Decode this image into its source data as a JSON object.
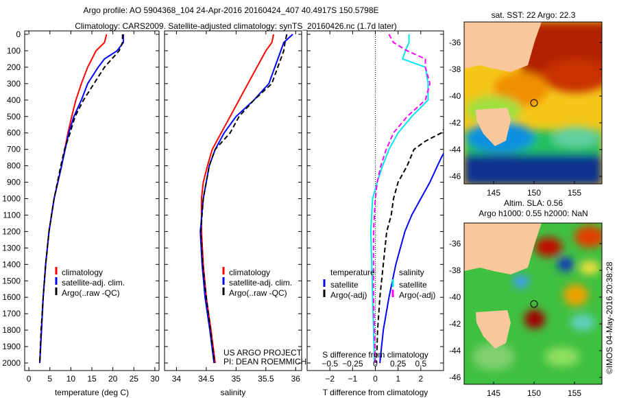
{
  "title_line1": "Argo profile: AO 5904368_104 24-Apr-2016 20160424_407 40.4917S 150.5798E",
  "title_line2": "Climatology: CARS2009. Satellite-adjusted climatology: synTS_20160426.nc (1.7d later)",
  "project_line1": "US ARGO PROJECT",
  "project_line2": "PI: DEAN ROEMMICH",
  "timestamp": "©IMOS 04-May-2016 20:38:28",
  "chart_data": [
    {
      "type": "line",
      "xlabel": "temperature (deg C)",
      "ylabel": "",
      "xlim": [
        -1,
        31
      ],
      "ylim": [
        2050,
        0
      ],
      "xticks": [
        0,
        5,
        10,
        15,
        20,
        25,
        30
      ],
      "yticks": [
        0,
        100,
        200,
        300,
        400,
        500,
        600,
        700,
        800,
        900,
        1000,
        1100,
        1200,
        1300,
        1400,
        1500,
        1600,
        1700,
        1800,
        1900,
        2000
      ],
      "legend": [
        "climatology",
        "satellite-adj. clim.",
        "Argo(..raw -QC)"
      ],
      "series": [
        {
          "name": "climatology",
          "color": "#ff0000",
          "dash": false,
          "depth": [
            0,
            50,
            100,
            200,
            300,
            400,
            500,
            600,
            800,
            1000,
            1200,
            1400,
            1600,
            1800,
            2000
          ],
          "values": [
            18.5,
            18,
            16,
            14,
            12.5,
            11.2,
            10.2,
            9.3,
            7.8,
            6,
            4.8,
            4,
            3.4,
            3,
            2.6
          ]
        },
        {
          "name": "satellite-adj. clim.",
          "color": "#0000ff",
          "dash": false,
          "depth": [
            0,
            50,
            100,
            150,
            200,
            300,
            400,
            500,
            600,
            800,
            1000,
            1200,
            1400,
            1600,
            1800,
            2000
          ],
          "values": [
            22.5,
            22.5,
            21,
            18,
            16.5,
            14,
            12.5,
            10.7,
            9.5,
            7.8,
            6,
            4.8,
            4,
            3.4,
            3,
            2.6
          ]
        },
        {
          "name": "Argo(..raw -QC)",
          "color": "#000000",
          "dash": true,
          "depth": [
            0,
            50,
            100,
            200,
            300,
            400,
            500,
            600,
            700,
            800,
            1000,
            1200,
            1400,
            1600,
            1800,
            2000
          ],
          "values": [
            22.3,
            22.3,
            21.5,
            18,
            15.5,
            13,
            11,
            9.8,
            8.5,
            7.6,
            6,
            4.8,
            4,
            3.4,
            2.9,
            2.6
          ]
        }
      ]
    },
    {
      "type": "line",
      "xlabel": "salinity",
      "xlim": [
        33.8,
        36.1
      ],
      "ylim": [
        2050,
        0
      ],
      "xticks": [
        34,
        34.5,
        35,
        35.5,
        36
      ],
      "legend": [
        "climatology",
        "satellite-adj. clim.",
        "Argo(..raw -QC)"
      ],
      "series": [
        {
          "name": "climatology",
          "color": "#ff0000",
          "dash": false,
          "depth": [
            0,
            50,
            100,
            200,
            300,
            400,
            500,
            600,
            700,
            800,
            900,
            1000,
            1200,
            1400,
            1600,
            1800,
            2000
          ],
          "values": [
            35.63,
            35.6,
            35.5,
            35.35,
            35.2,
            35.05,
            34.9,
            34.75,
            34.6,
            34.52,
            34.45,
            34.42,
            34.42,
            34.45,
            34.5,
            34.58,
            34.65
          ]
        },
        {
          "name": "satellite-adj. clim.",
          "color": "#0000ff",
          "dash": false,
          "depth": [
            0,
            50,
            100,
            200,
            300,
            400,
            500,
            600,
            700,
            800,
            1000,
            1200,
            1400,
            1600,
            1800,
            2000
          ],
          "values": [
            35.95,
            35.8,
            35.75,
            35.65,
            35.55,
            35.3,
            35.0,
            34.8,
            34.65,
            34.55,
            34.45,
            34.4,
            34.43,
            34.48,
            34.56,
            34.63
          ]
        },
        {
          "name": "Argo(..raw -QC)",
          "color": "#000000",
          "dash": true,
          "depth": [
            0,
            50,
            100,
            200,
            300,
            400,
            500,
            600,
            700,
            800,
            1000,
            1200,
            1400,
            1600,
            1800,
            2000
          ],
          "values": [
            35.85,
            35.82,
            35.8,
            35.7,
            35.6,
            35.3,
            35.05,
            34.9,
            34.65,
            34.55,
            34.45,
            34.41,
            34.44,
            34.5,
            34.57,
            34.64
          ]
        }
      ]
    },
    {
      "type": "line",
      "xlabel": "T difference from climatology",
      "xlabel2": "S difference from climatology",
      "xlim": [
        -3,
        3
      ],
      "s_xlim": [
        -0.75,
        0.75
      ],
      "ylim": [
        2050,
        0
      ],
      "xticks": [
        -2,
        -1,
        0,
        1,
        2
      ],
      "s_xticks": [
        -0.5,
        -0.25,
        0,
        0.25,
        0.5
      ],
      "legend_headers": [
        "temperature",
        "salinity"
      ],
      "legend": [
        "satellite",
        "Argo(-adj)",
        "satellite",
        "Argo(-adj)"
      ],
      "series": [
        {
          "name": "T satellite",
          "axis": "T",
          "color": "#0000ff",
          "dash": false,
          "depth": [
            700,
            750,
            900,
            1000,
            1100,
            1200,
            1400,
            1600,
            1800,
            2000
          ],
          "values": [
            3.1,
            2.9,
            2.4,
            2.0,
            1.6,
            1.3,
            0.9,
            0.6,
            0.35,
            0.2
          ]
        },
        {
          "name": "T Argo(-adj)",
          "axis": "T",
          "color": "#000000",
          "dash": true,
          "depth": [
            560,
            600,
            650,
            700,
            800,
            900,
            1000,
            1100,
            1200,
            1400,
            1600,
            1800,
            2000
          ],
          "values": [
            3.1,
            2.9,
            2.2,
            1.7,
            1.4,
            1.0,
            0.8,
            0.7,
            0.5,
            0.35,
            0.2,
            0.1,
            0.05
          ]
        },
        {
          "name": "S satellite",
          "axis": "S",
          "color": "#00e5ee",
          "dash": false,
          "depth": [
            0,
            50,
            100,
            150,
            200,
            300,
            400,
            500,
            600,
            700,
            800,
            900,
            1000,
            1200,
            1400,
            1600,
            1800,
            2000
          ],
          "values": [
            0.37,
            0.37,
            0.33,
            0.3,
            0.55,
            0.58,
            0.58,
            0.4,
            0.25,
            0.15,
            0.08,
            0.02,
            -0.03,
            -0.05,
            -0.04,
            -0.03,
            -0.02,
            -0.01
          ]
        },
        {
          "name": "S Argo(-adj)",
          "axis": "S",
          "color": "#ff00ff",
          "dash": true,
          "depth": [
            0,
            50,
            100,
            150,
            200,
            300,
            400,
            500,
            600,
            700,
            800,
            900,
            1000,
            1200,
            1400,
            1600,
            1800,
            2000
          ],
          "values": [
            0.15,
            0.2,
            0.35,
            0.55,
            0.55,
            0.6,
            0.55,
            0.35,
            0.2,
            0.12,
            0.06,
            0.02,
            0,
            -0.02,
            -0.02,
            -0.02,
            -0.01,
            0
          ]
        }
      ]
    }
  ],
  "maps": [
    {
      "title": "sat. SST: 22 Argo: 22.3",
      "lon_ticks": [
        "145",
        "150",
        "155"
      ],
      "lat_ticks": [
        "-36",
        "-38",
        "-40",
        "-42",
        "-44",
        "-46"
      ]
    },
    {
      "title1": "Altim. SLA: 0.56",
      "title2": "Argo h1000: 0.55 h2000: NaN",
      "lon_ticks": [
        "145",
        "150",
        "155"
      ],
      "lat_ticks": [
        "-36",
        "-38",
        "-40",
        "-42",
        "-44",
        "-46"
      ]
    }
  ]
}
